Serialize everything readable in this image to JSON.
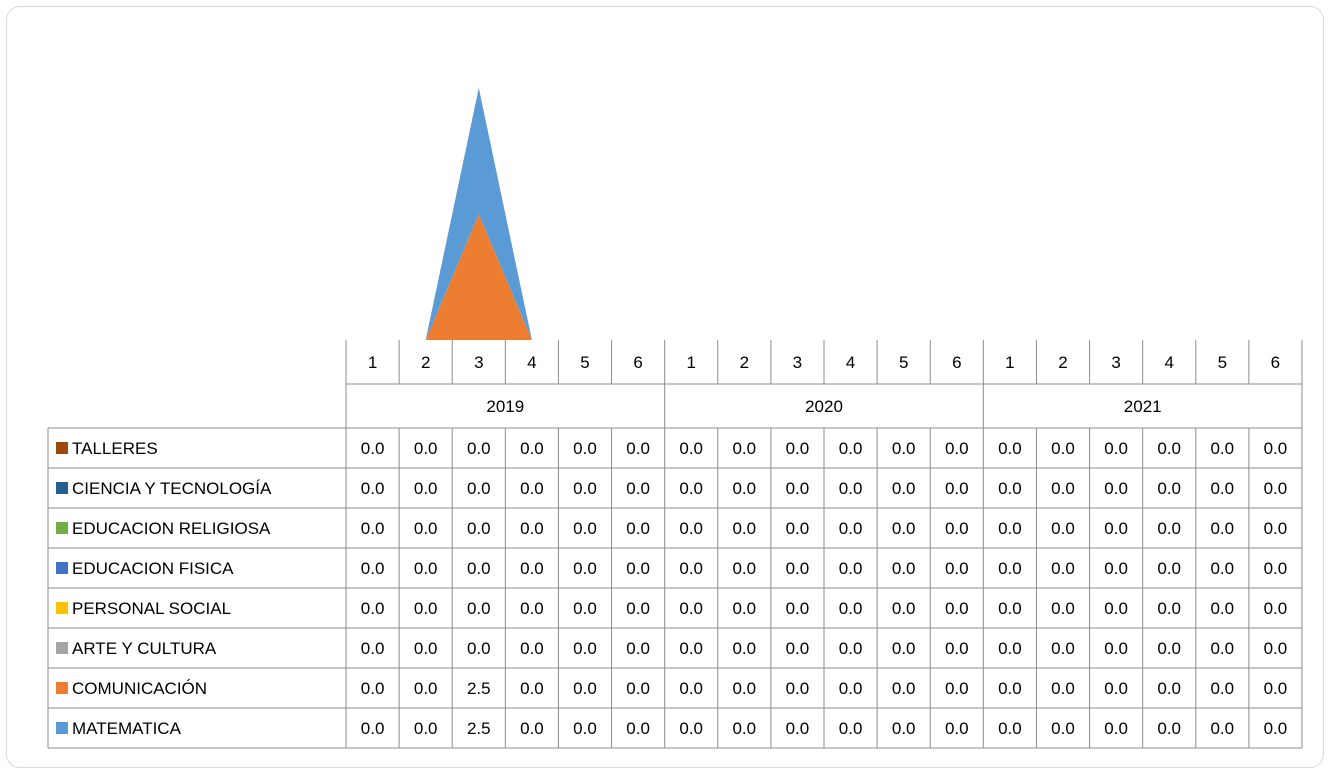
{
  "chart_data": {
    "type": "area",
    "stacked": true,
    "title": "",
    "xlabel": "",
    "ylabel": "",
    "grid": false,
    "legend_placement": "data-table",
    "categories": [
      "1",
      "2",
      "3",
      "4",
      "5",
      "6",
      "1",
      "2",
      "3",
      "4",
      "5",
      "6",
      "1",
      "2",
      "3",
      "4",
      "5",
      "6"
    ],
    "groups": [
      {
        "label": "2019",
        "span": 6
      },
      {
        "label": "2020",
        "span": 6
      },
      {
        "label": "2021",
        "span": 6
      }
    ],
    "series": [
      {
        "name": "TALLERES",
        "color": "#9E480E",
        "values": [
          0,
          0,
          0,
          0,
          0,
          0,
          0,
          0,
          0,
          0,
          0,
          0,
          0,
          0,
          0,
          0,
          0,
          0
        ],
        "labels": [
          "0.0",
          "0.0",
          "0.0",
          "0.0",
          "0.0",
          "0.0",
          "0.0",
          "0.0",
          "0.0",
          "0.0",
          "0.0",
          "0.0",
          "0.0",
          "0.0",
          "0.0",
          "0.0",
          "0.0",
          "0.0"
        ]
      },
      {
        "name": "CIENCIA Y TECNOLOGÍA",
        "color": "#255E91",
        "values": [
          0,
          0,
          0,
          0,
          0,
          0,
          0,
          0,
          0,
          0,
          0,
          0,
          0,
          0,
          0,
          0,
          0,
          0
        ],
        "labels": [
          "0.0",
          "0.0",
          "0.0",
          "0.0",
          "0.0",
          "0.0",
          "0.0",
          "0.0",
          "0.0",
          "0.0",
          "0.0",
          "0.0",
          "0.0",
          "0.0",
          "0.0",
          "0.0",
          "0.0",
          "0.0"
        ]
      },
      {
        "name": "EDUCACION RELIGIOSA",
        "color": "#70AD47",
        "values": [
          0,
          0,
          0,
          0,
          0,
          0,
          0,
          0,
          0,
          0,
          0,
          0,
          0,
          0,
          0,
          0,
          0,
          0
        ],
        "labels": [
          "0.0",
          "0.0",
          "0.0",
          "0.0",
          "0.0",
          "0.0",
          "0.0",
          "0.0",
          "0.0",
          "0.0",
          "0.0",
          "0.0",
          "0.0",
          "0.0",
          "0.0",
          "0.0",
          "0.0",
          "0.0"
        ]
      },
      {
        "name": "EDUCACION FISICA",
        "color": "#4472C4",
        "values": [
          0,
          0,
          0,
          0,
          0,
          0,
          0,
          0,
          0,
          0,
          0,
          0,
          0,
          0,
          0,
          0,
          0,
          0
        ],
        "labels": [
          "0.0",
          "0.0",
          "0.0",
          "0.0",
          "0.0",
          "0.0",
          "0.0",
          "0.0",
          "0.0",
          "0.0",
          "0.0",
          "0.0",
          "0.0",
          "0.0",
          "0.0",
          "0.0",
          "0.0",
          "0.0"
        ]
      },
      {
        "name": "PERSONAL SOCIAL",
        "color": "#FFC000",
        "values": [
          0,
          0,
          0,
          0,
          0,
          0,
          0,
          0,
          0,
          0,
          0,
          0,
          0,
          0,
          0,
          0,
          0,
          0
        ],
        "labels": [
          "0.0",
          "0.0",
          "0.0",
          "0.0",
          "0.0",
          "0.0",
          "0.0",
          "0.0",
          "0.0",
          "0.0",
          "0.0",
          "0.0",
          "0.0",
          "0.0",
          "0.0",
          "0.0",
          "0.0",
          "0.0"
        ]
      },
      {
        "name": "ARTE Y CULTURA",
        "color": "#A5A5A5",
        "values": [
          0,
          0,
          0,
          0,
          0,
          0,
          0,
          0,
          0,
          0,
          0,
          0,
          0,
          0,
          0,
          0,
          0,
          0
        ],
        "labels": [
          "0.0",
          "0.0",
          "0.0",
          "0.0",
          "0.0",
          "0.0",
          "0.0",
          "0.0",
          "0.0",
          "0.0",
          "0.0",
          "0.0",
          "0.0",
          "0.0",
          "0.0",
          "0.0",
          "0.0",
          "0.0"
        ]
      },
      {
        "name": "COMUNICACIÓN",
        "color": "#ED7D31",
        "values": [
          0,
          0,
          2.5,
          0,
          0,
          0,
          0,
          0,
          0,
          0,
          0,
          0,
          0,
          0,
          0,
          0,
          0,
          0
        ],
        "labels": [
          "0.0",
          "0.0",
          "2.5",
          "0.0",
          "0.0",
          "0.0",
          "0.0",
          "0.0",
          "0.0",
          "0.0",
          "0.0",
          "0.0",
          "0.0",
          "0.0",
          "0.0",
          "0.0",
          "0.0",
          "0.0"
        ]
      },
      {
        "name": "MATEMATICA",
        "color": "#5B9BD5",
        "values": [
          0,
          0,
          2.5,
          0,
          0,
          0,
          0,
          0,
          0,
          0,
          0,
          0,
          0,
          0,
          0,
          0,
          0,
          0
        ],
        "labels": [
          "0.0",
          "0.0",
          "2.5",
          "0.0",
          "0.0",
          "0.0",
          "0.0",
          "0.0",
          "0.0",
          "0.0",
          "0.0",
          "0.0",
          "0.0",
          "0.0",
          "0.0",
          "0.0",
          "0.0",
          "0.0"
        ]
      }
    ]
  }
}
